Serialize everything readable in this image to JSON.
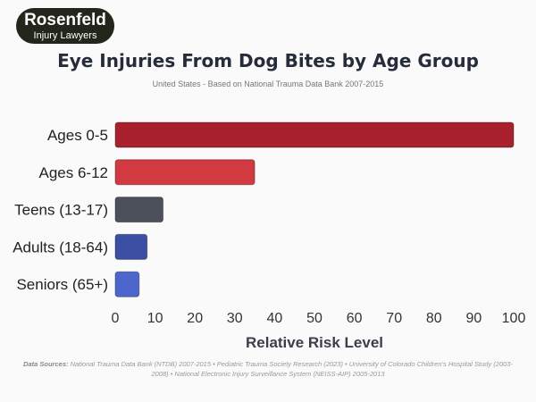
{
  "logo": {
    "line1": "Rosenfeld",
    "line2": "Injury Lawyers"
  },
  "chart_data": {
    "type": "bar",
    "orientation": "horizontal",
    "title": "Eye Injuries From Dog Bites by Age Group",
    "subtitle": "United States - Based on National Trauma Data Bank 2007-2015",
    "categories": [
      "Ages 0-5",
      "Ages 6-12",
      "Teens (13-17)",
      "Adults (18-64)",
      "Seniors (65+)"
    ],
    "values": [
      100,
      35,
      12,
      8,
      6
    ],
    "colors": [
      "#a8212d",
      "#d13a41",
      "#4b505a",
      "#3b4fa5",
      "#4d66cc"
    ],
    "xlabel": "Relative Risk Level",
    "ylabel": "",
    "xlim": [
      0,
      100
    ],
    "ticks": [
      0,
      10,
      20,
      30,
      40,
      50,
      60,
      70,
      80,
      90,
      100
    ],
    "grid": false
  },
  "sources": {
    "label": "Data Sources:",
    "text": "National Trauma Data Bank (NTDB) 2007-2015 • Pediatric Trauma Society Research (2023) • University of Colorado Children's Hospital Study (2003-2008) • National Electronic Injury Surveillance System (NEISS-AIP) 2005-2013"
  }
}
